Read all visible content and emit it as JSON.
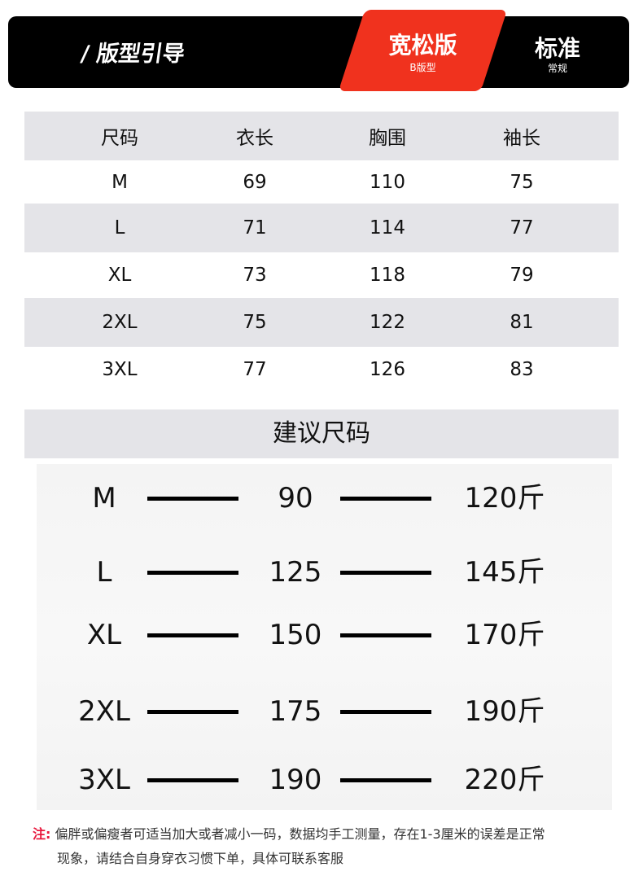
{
  "header": {
    "title": "/ 版型引导",
    "active_fit": {
      "label": "宽松版",
      "sub": "B版型"
    },
    "other_fit": {
      "label": "标准",
      "sub": "常规"
    },
    "accent": "#f0321e"
  },
  "size_table": {
    "headers": [
      "尺码",
      "衣长",
      "胸围",
      "袖长"
    ],
    "rows": [
      [
        "M",
        "69",
        "110",
        "75"
      ],
      [
        "L",
        "71",
        "114",
        "77"
      ],
      [
        "XL",
        "73",
        "118",
        "79"
      ],
      [
        "2XL",
        "75",
        "122",
        "81"
      ],
      [
        "3XL",
        "77",
        "126",
        "83"
      ]
    ]
  },
  "recommend": {
    "title": "建议尺码",
    "rows": [
      {
        "size": "M",
        "min": "90",
        "max": "120斤"
      },
      {
        "size": "L",
        "min": "125",
        "max": "145斤"
      },
      {
        "size": "XL",
        "min": "150",
        "max": "170斤"
      },
      {
        "size": "2XL",
        "min": "175",
        "max": "190斤"
      },
      {
        "size": "3XL",
        "min": "190",
        "max": "220斤"
      }
    ]
  },
  "note": {
    "label": "注:",
    "line1": "偏胖或偏瘦者可适当加大或者减小一码，数据均手工测量，存在1-3厘米的误差是正常",
    "line2": "现象，请结合自身穿衣习惯下单，具体可联系客服"
  }
}
